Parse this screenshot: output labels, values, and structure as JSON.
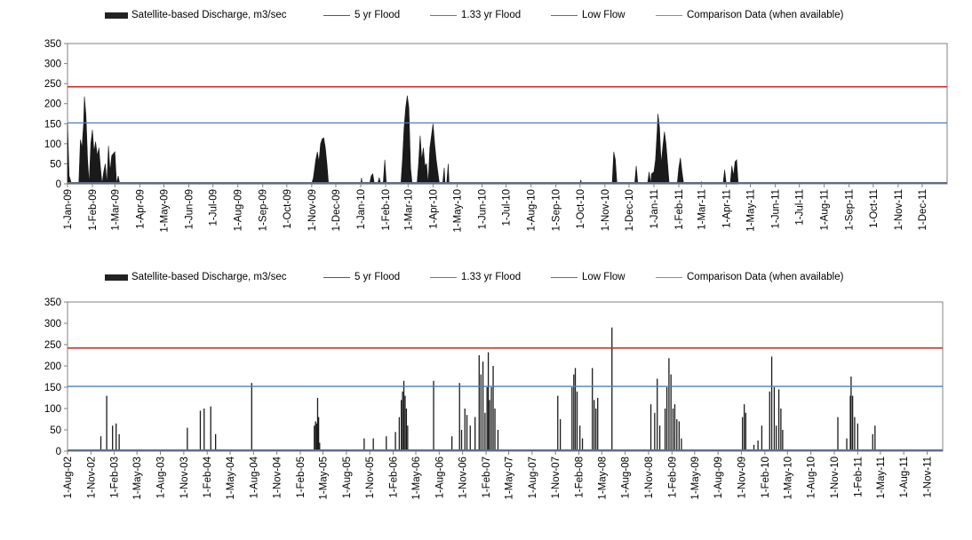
{
  "legend": {
    "discharge": "Satellite-based Discharge, m3/sec",
    "flood5": "5 yr Flood",
    "flood133": "1.33 yr Flood",
    "low": "Low Flow",
    "comparison": "Comparison Data (when available)"
  },
  "colors": {
    "discharge": "#1a1a1a",
    "flood5": "#d62020",
    "flood133": "#4a7ebb",
    "low": "#7f5aa2",
    "comparison": "#3fa9c9",
    "baseline": "#5b6f86",
    "axis": "#808080"
  },
  "chart_data": [
    {
      "type": "area",
      "title": "",
      "xlabel": "",
      "ylabel": "",
      "ylim": [
        0,
        350
      ],
      "yticks": [
        0,
        50,
        100,
        150,
        200,
        250,
        300,
        350
      ],
      "x_range": [
        "2009-01-01",
        "2012-01-01"
      ],
      "x_tick_labels": [
        "1-Jan-09",
        "1-Feb-09",
        "1-Mar-09",
        "1-Apr-09",
        "1-May-09",
        "1-Jun-09",
        "1-Jul-09",
        "1-Aug-09",
        "1-Sep-09",
        "1-Oct-09",
        "1-Nov-09",
        "1-Dec-09",
        "1-Jan-10",
        "1-Feb-10",
        "1-Mar-10",
        "1-Apr-10",
        "1-May-10",
        "1-Jun-10",
        "1-Jul-10",
        "1-Aug-10",
        "1-Sep-10",
        "1-Oct-10",
        "1-Nov-10",
        "1-Dec-10",
        "1-Jan-11",
        "1-Feb-11",
        "1-Mar-11",
        "1-Apr-11",
        "1-May-11",
        "1-Jun-11",
        "1-Jul-11",
        "1-Aug-11",
        "1-Sep-11",
        "1-Oct-11",
        "1-Nov-11",
        "1-Dec-11"
      ],
      "x_tick_dates": [
        "2009-01-01",
        "2009-02-01",
        "2009-03-01",
        "2009-04-01",
        "2009-05-01",
        "2009-06-01",
        "2009-07-01",
        "2009-08-01",
        "2009-09-01",
        "2009-10-01",
        "2009-11-01",
        "2009-12-01",
        "2010-01-01",
        "2010-02-01",
        "2010-03-01",
        "2010-04-01",
        "2010-05-01",
        "2010-06-01",
        "2010-07-01",
        "2010-08-01",
        "2010-09-01",
        "2010-10-01",
        "2010-11-01",
        "2010-12-01",
        "2011-01-01",
        "2011-02-01",
        "2011-03-01",
        "2011-04-01",
        "2011-05-01",
        "2011-06-01",
        "2011-07-01",
        "2011-08-01",
        "2011-09-01",
        "2011-10-01",
        "2011-11-01",
        "2011-12-01"
      ],
      "flood_5yr": 242,
      "flood_1_33yr": 152,
      "low_flow": 2,
      "comparison": 3,
      "legend_position": "top",
      "discharge": [
        [
          "2009-01-01",
          150
        ],
        [
          "2009-01-03",
          20
        ],
        [
          "2009-01-06",
          0
        ],
        [
          "2009-01-15",
          0
        ],
        [
          "2009-01-17",
          110
        ],
        [
          "2009-01-19",
          90
        ],
        [
          "2009-01-21",
          150
        ],
        [
          "2009-01-22",
          218
        ],
        [
          "2009-01-24",
          170
        ],
        [
          "2009-01-26",
          60
        ],
        [
          "2009-01-28",
          0
        ],
        [
          "2009-01-30",
          100
        ],
        [
          "2009-02-01",
          135
        ],
        [
          "2009-02-03",
          80
        ],
        [
          "2009-02-05",
          105
        ],
        [
          "2009-02-07",
          70
        ],
        [
          "2009-02-09",
          90
        ],
        [
          "2009-02-11",
          40
        ],
        [
          "2009-02-13",
          0
        ],
        [
          "2009-02-15",
          30
        ],
        [
          "2009-02-17",
          50
        ],
        [
          "2009-02-19",
          0
        ],
        [
          "2009-02-21",
          95
        ],
        [
          "2009-02-23",
          30
        ],
        [
          "2009-02-25",
          70
        ],
        [
          "2009-02-27",
          75
        ],
        [
          "2009-03-01",
          80
        ],
        [
          "2009-03-03",
          0
        ],
        [
          "2009-03-05",
          20
        ],
        [
          "2009-03-07",
          0
        ],
        [
          "2009-11-01",
          0
        ],
        [
          "2009-11-03",
          15
        ],
        [
          "2009-11-06",
          60
        ],
        [
          "2009-11-08",
          80
        ],
        [
          "2009-11-10",
          55
        ],
        [
          "2009-11-12",
          100
        ],
        [
          "2009-11-14",
          112
        ],
        [
          "2009-11-16",
          115
        ],
        [
          "2009-11-18",
          90
        ],
        [
          "2009-11-20",
          50
        ],
        [
          "2009-11-22",
          0
        ],
        [
          "2010-01-01",
          0
        ],
        [
          "2010-01-02",
          15
        ],
        [
          "2010-01-03",
          0
        ],
        [
          "2010-01-12",
          0
        ],
        [
          "2010-01-14",
          20
        ],
        [
          "2010-01-16",
          25
        ],
        [
          "2010-01-18",
          0
        ],
        [
          "2010-01-22",
          0
        ],
        [
          "2010-01-24",
          15
        ],
        [
          "2010-01-26",
          0
        ],
        [
          "2010-01-29",
          0
        ],
        [
          "2010-01-31",
          60
        ],
        [
          "2010-02-02",
          0
        ],
        [
          "2010-02-20",
          0
        ],
        [
          "2010-02-22",
          60
        ],
        [
          "2010-02-24",
          140
        ],
        [
          "2010-02-26",
          190
        ],
        [
          "2010-02-28",
          220
        ],
        [
          "2010-03-02",
          190
        ],
        [
          "2010-03-04",
          40
        ],
        [
          "2010-03-06",
          0
        ],
        [
          "2010-03-12",
          0
        ],
        [
          "2010-03-14",
          50
        ],
        [
          "2010-03-16",
          120
        ],
        [
          "2010-03-18",
          60
        ],
        [
          "2010-03-20",
          90
        ],
        [
          "2010-03-22",
          45
        ],
        [
          "2010-03-24",
          50
        ],
        [
          "2010-03-26",
          0
        ],
        [
          "2010-03-28",
          90
        ],
        [
          "2010-03-30",
          120
        ],
        [
          "2010-04-01",
          150
        ],
        [
          "2010-04-03",
          100
        ],
        [
          "2010-04-05",
          60
        ],
        [
          "2010-04-07",
          30
        ],
        [
          "2010-04-09",
          0
        ],
        [
          "2010-04-13",
          0
        ],
        [
          "2010-04-15",
          40
        ],
        [
          "2010-04-16",
          0
        ],
        [
          "2010-04-18",
          0
        ],
        [
          "2010-04-20",
          50
        ],
        [
          "2010-04-21",
          0
        ],
        [
          "2010-10-01",
          0
        ],
        [
          "2010-10-02",
          10
        ],
        [
          "2010-10-03",
          0
        ],
        [
          "2010-11-10",
          0
        ],
        [
          "2010-11-12",
          80
        ],
        [
          "2010-11-14",
          60
        ],
        [
          "2010-11-16",
          0
        ],
        [
          "2010-12-08",
          0
        ],
        [
          "2010-12-10",
          45
        ],
        [
          "2010-12-12",
          0
        ],
        [
          "2010-12-24",
          0
        ],
        [
          "2010-12-26",
          30
        ],
        [
          "2010-12-28",
          0
        ],
        [
          "2010-12-29",
          25
        ],
        [
          "2011-01-01",
          30
        ],
        [
          "2011-01-03",
          60
        ],
        [
          "2011-01-05",
          130
        ],
        [
          "2011-01-06",
          175
        ],
        [
          "2011-01-08",
          140
        ],
        [
          "2011-01-10",
          50
        ],
        [
          "2011-01-12",
          90
        ],
        [
          "2011-01-14",
          130
        ],
        [
          "2011-01-16",
          100
        ],
        [
          "2011-01-18",
          50
        ],
        [
          "2011-01-20",
          0
        ],
        [
          "2011-01-30",
          0
        ],
        [
          "2011-02-01",
          40
        ],
        [
          "2011-02-03",
          65
        ],
        [
          "2011-02-05",
          30
        ],
        [
          "2011-02-07",
          0
        ],
        [
          "2011-02-28",
          0
        ],
        [
          "2011-03-01",
          5
        ],
        [
          "2011-03-02",
          0
        ],
        [
          "2011-03-28",
          0
        ],
        [
          "2011-03-30",
          35
        ],
        [
          "2011-04-01",
          0
        ],
        [
          "2011-04-06",
          0
        ],
        [
          "2011-04-08",
          45
        ],
        [
          "2011-04-10",
          20
        ],
        [
          "2011-04-12",
          55
        ],
        [
          "2011-04-14",
          60
        ],
        [
          "2011-04-16",
          0
        ]
      ]
    },
    {
      "type": "area",
      "title": "",
      "xlabel": "",
      "ylabel": "",
      "ylim": [
        0,
        350
      ],
      "yticks": [
        0,
        50,
        100,
        150,
        200,
        250,
        300,
        350
      ],
      "x_range": [
        "2002-08-01",
        "2012-01-01"
      ],
      "x_tick_labels": [
        "1-Aug-02",
        "1-Nov-02",
        "1-Feb-03",
        "1-May-03",
        "1-Aug-03",
        "1-Nov-03",
        "1-Feb-04",
        "1-May-04",
        "1-Aug-04",
        "1-Nov-04",
        "1-Feb-05",
        "1-May-05",
        "1-Aug-05",
        "1-Nov-05",
        "1-Feb-06",
        "1-May-06",
        "1-Aug-06",
        "1-Nov-06",
        "1-Feb-07",
        "1-May-07",
        "1-Aug-07",
        "1-Nov-07",
        "1-Feb-08",
        "1-May-08",
        "1-Aug-08",
        "1-Nov-08",
        "1-Feb-09",
        "1-May-09",
        "1-Aug-09",
        "1-Nov-09",
        "1-Feb-10",
        "1-May-10",
        "1-Aug-10",
        "1-Nov-10",
        "1-Feb-11",
        "1-May-11",
        "1-Aug-11",
        "1-Nov-11"
      ],
      "x_tick_dates": [
        "2002-08-01",
        "2002-11-01",
        "2003-02-01",
        "2003-05-01",
        "2003-08-01",
        "2003-11-01",
        "2004-02-01",
        "2004-05-01",
        "2004-08-01",
        "2004-11-01",
        "2005-02-01",
        "2005-05-01",
        "2005-08-01",
        "2005-11-01",
        "2006-02-01",
        "2006-05-01",
        "2006-08-01",
        "2006-11-01",
        "2007-02-01",
        "2007-05-01",
        "2007-08-01",
        "2007-11-01",
        "2008-02-01",
        "2008-05-01",
        "2008-08-01",
        "2008-11-01",
        "2009-02-01",
        "2009-05-01",
        "2009-08-01",
        "2009-11-01",
        "2010-02-01",
        "2010-05-01",
        "2010-08-01",
        "2010-11-01",
        "2011-02-01",
        "2011-05-01",
        "2011-08-01",
        "2011-11-01"
      ],
      "flood_5yr": 242,
      "flood_1_33yr": 152,
      "low_flow": 2,
      "comparison": 3,
      "legend_position": "top",
      "discharge_spikes": [
        [
          "2002-12-10",
          35
        ],
        [
          "2003-01-02",
          130
        ],
        [
          "2003-01-25",
          60
        ],
        [
          "2003-02-08",
          65
        ],
        [
          "2003-02-20",
          40
        ],
        [
          "2003-11-15",
          55
        ],
        [
          "2004-01-05",
          95
        ],
        [
          "2004-01-20",
          100
        ],
        [
          "2004-02-15",
          105
        ],
        [
          "2004-03-05",
          40
        ],
        [
          "2004-07-25",
          160
        ],
        [
          "2005-03-28",
          60
        ],
        [
          "2005-04-02",
          70
        ],
        [
          "2005-04-06",
          65
        ],
        [
          "2005-04-10",
          125
        ],
        [
          "2005-04-14",
          80
        ],
        [
          "2005-04-18",
          20
        ],
        [
          "2005-10-10",
          30
        ],
        [
          "2005-11-15",
          30
        ],
        [
          "2006-01-05",
          35
        ],
        [
          "2006-02-10",
          45
        ],
        [
          "2006-02-25",
          80
        ],
        [
          "2006-03-05",
          120
        ],
        [
          "2006-03-10",
          140
        ],
        [
          "2006-03-15",
          165
        ],
        [
          "2006-03-20",
          130
        ],
        [
          "2006-03-25",
          100
        ],
        [
          "2006-03-30",
          60
        ],
        [
          "2006-07-10",
          165
        ],
        [
          "2006-09-20",
          35
        ],
        [
          "2006-10-20",
          160
        ],
        [
          "2006-10-28",
          50
        ],
        [
          "2006-11-10",
          100
        ],
        [
          "2006-11-18",
          85
        ],
        [
          "2006-12-01",
          60
        ],
        [
          "2006-12-20",
          80
        ],
        [
          "2007-01-05",
          225
        ],
        [
          "2007-01-12",
          180
        ],
        [
          "2007-01-20",
          210
        ],
        [
          "2007-01-28",
          90
        ],
        [
          "2007-02-05",
          150
        ],
        [
          "2007-02-10",
          232
        ],
        [
          "2007-02-15",
          120
        ],
        [
          "2007-02-22",
          150
        ],
        [
          "2007-03-01",
          200
        ],
        [
          "2007-03-08",
          100
        ],
        [
          "2007-03-20",
          50
        ],
        [
          "2007-11-10",
          130
        ],
        [
          "2007-11-20",
          75
        ],
        [
          "2008-01-05",
          150
        ],
        [
          "2008-01-12",
          180
        ],
        [
          "2008-01-18",
          195
        ],
        [
          "2008-01-25",
          140
        ],
        [
          "2008-02-05",
          60
        ],
        [
          "2008-02-15",
          30
        ],
        [
          "2008-03-25",
          195
        ],
        [
          "2008-04-01",
          120
        ],
        [
          "2008-04-08",
          100
        ],
        [
          "2008-04-15",
          125
        ],
        [
          "2008-06-10",
          290
        ],
        [
          "2008-11-10",
          110
        ],
        [
          "2008-11-25",
          90
        ],
        [
          "2008-12-05",
          170
        ],
        [
          "2008-12-15",
          60
        ],
        [
          "2009-01-05",
          100
        ],
        [
          "2009-01-12",
          150
        ],
        [
          "2009-01-20",
          218
        ],
        [
          "2009-01-28",
          180
        ],
        [
          "2009-02-05",
          100
        ],
        [
          "2009-02-12",
          110
        ],
        [
          "2009-02-20",
          75
        ],
        [
          "2009-03-01",
          70
        ],
        [
          "2009-03-10",
          30
        ],
        [
          "2009-11-05",
          80
        ],
        [
          "2009-11-12",
          110
        ],
        [
          "2009-11-18",
          90
        ],
        [
          "2009-12-20",
          15
        ],
        [
          "2010-01-05",
          25
        ],
        [
          "2010-01-20",
          60
        ],
        [
          "2010-02-20",
          140
        ],
        [
          "2010-02-28",
          222
        ],
        [
          "2010-03-10",
          150
        ],
        [
          "2010-03-18",
          60
        ],
        [
          "2010-03-28",
          145
        ],
        [
          "2010-04-05",
          100
        ],
        [
          "2010-04-12",
          50
        ],
        [
          "2010-11-15",
          80
        ],
        [
          "2010-12-20",
          30
        ],
        [
          "2011-01-03",
          130
        ],
        [
          "2011-01-06",
          175
        ],
        [
          "2011-01-12",
          130
        ],
        [
          "2011-01-20",
          80
        ],
        [
          "2011-02-01",
          65
        ],
        [
          "2011-04-01",
          40
        ],
        [
          "2011-04-10",
          60
        ]
      ]
    }
  ]
}
